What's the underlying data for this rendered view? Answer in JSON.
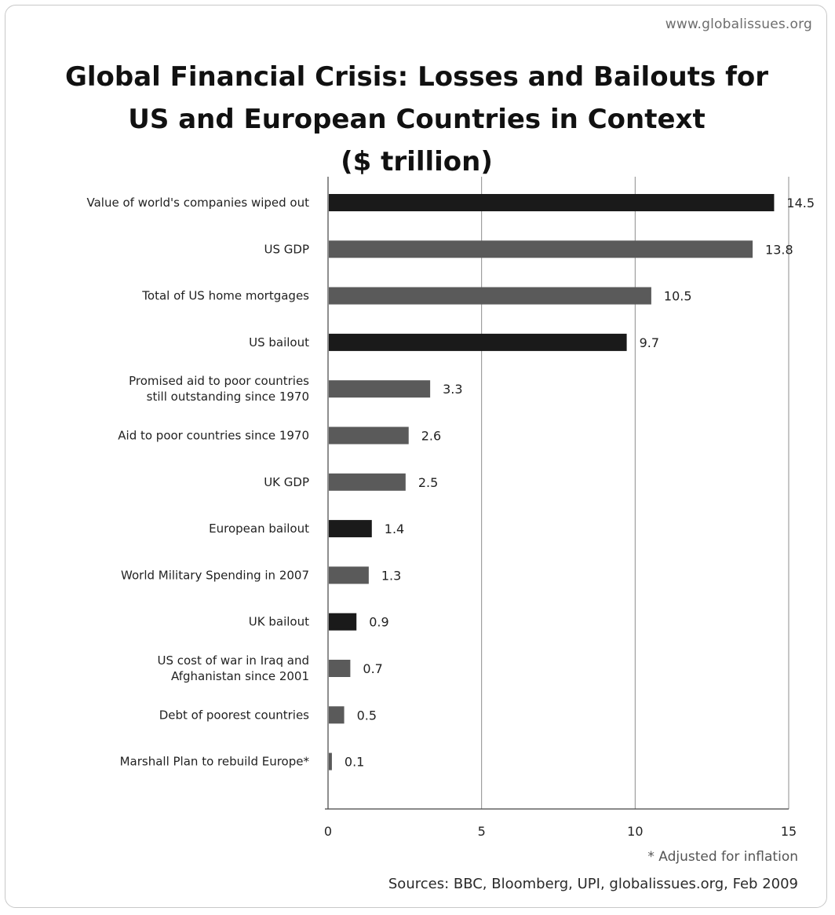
{
  "source_url": "www.globalissues.org",
  "footnote": "* Adjusted for inflation",
  "sources": "Sources: BBC, Bloomberg, UPI, globalissues.org, Feb 2009",
  "colors": {
    "dark_bar": "#1a1a1a",
    "gray_bar": "#5a5a5a",
    "gridline": "#8c8c8c"
  },
  "chart_data": {
    "type": "bar",
    "orientation": "horizontal",
    "title_lines": [
      "Global Financial Crisis: Losses and Bailouts for",
      "US and European Countries in Context",
      "($ trillion)"
    ],
    "categories": [
      [
        "Value of world's companies wiped out"
      ],
      [
        "US GDP"
      ],
      [
        "Total of US home mortgages"
      ],
      [
        "US bailout"
      ],
      [
        "Promised aid to poor countries",
        "still outstanding since 1970"
      ],
      [
        "Aid to poor countries since 1970"
      ],
      [
        "UK GDP"
      ],
      [
        "European bailout"
      ],
      [
        "World Military Spending in 2007"
      ],
      [
        "UK bailout"
      ],
      [
        "US cost of war in Iraq and",
        "Afghanistan since 2001"
      ],
      [
        "Debt of poorest countries"
      ],
      [
        "Marshall Plan to rebuild Europe*"
      ]
    ],
    "values": [
      14.5,
      13.8,
      10.5,
      9.7,
      3.3,
      2.6,
      2.5,
      1.4,
      1.3,
      0.9,
      0.7,
      0.5,
      0.1
    ],
    "value_labels": [
      "14.5",
      "13.8",
      "10.5",
      "9.7",
      "3.3",
      "2.6",
      "2.5",
      "1.4",
      "1.3",
      "0.9",
      "0.7",
      "0.5",
      "0.1"
    ],
    "bar_shades": [
      "dark",
      "gray",
      "gray",
      "dark",
      "gray",
      "gray",
      "gray",
      "dark",
      "gray",
      "dark",
      "gray",
      "gray",
      "gray"
    ],
    "xlim": [
      0,
      15
    ],
    "xticks": [
      0,
      5,
      10,
      15
    ],
    "grid": "vertical"
  }
}
